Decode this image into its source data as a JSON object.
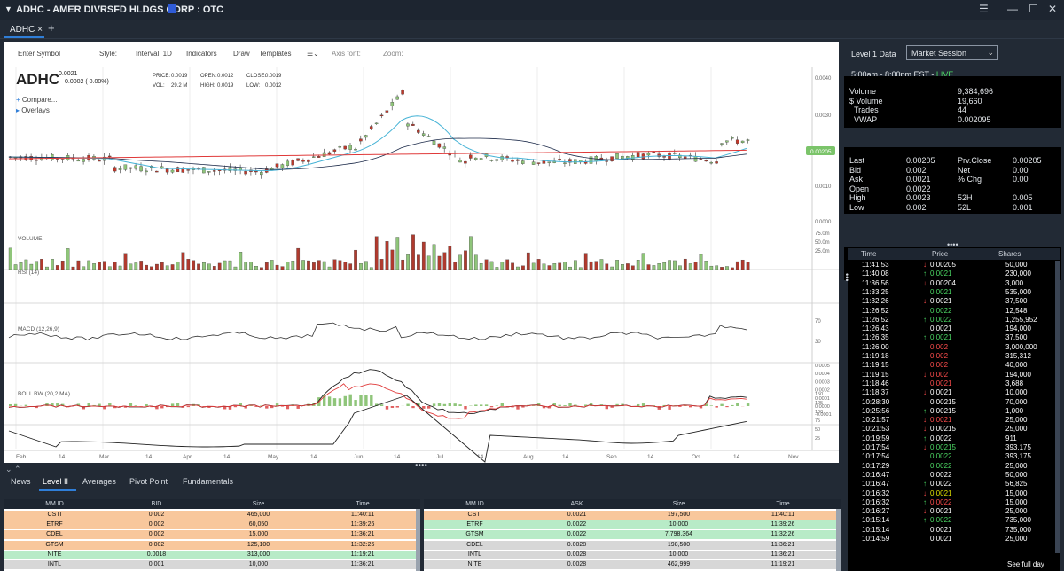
{
  "window": {
    "title": "ADHC - AMER DIVRSFD HLDGS CORP : OTC"
  },
  "tabs": [
    {
      "label": "ADHC ×"
    }
  ],
  "toolbar": {
    "symbol_placeholder": "Enter Symbol",
    "style": "Style:",
    "interval": "Interval: 1D",
    "indicators": "Indicators",
    "draw": "Draw",
    "templates": "Templates",
    "axis_font": "Axis font:",
    "zoom": "Zoom:"
  },
  "quote": {
    "symbol": "ADHC",
    "last": "0.0021",
    "change": "0.0002 ( 0.00%)",
    "price_label": "PRICE:",
    "price": "0.0019",
    "vol_label": "VOL:",
    "vol": "29.2 M",
    "open_label": "OPEN:",
    "open": "0.0012",
    "high_label": "HIGH:",
    "high": "0.0019",
    "close_label": "CLOSE:",
    "close": "0.0019",
    "low_label": "LOW:",
    "low": "0.0012",
    "compare": "Compare...",
    "overlays": "Overlays"
  },
  "panels": {
    "volume": "VOLUME",
    "rsi": "RSI (14)",
    "macd": "MACD (12,26,9)",
    "bollbw": "BOLL BW (20,2,MA)"
  },
  "axes": {
    "price": [
      "0.0040",
      "0.0030",
      "0.0020",
      "0.0010",
      "0.0000"
    ],
    "current_price": "0.00205",
    "volume": [
      "75.0m",
      "50.0m",
      "25.0m"
    ],
    "rsi": [
      "70",
      "30"
    ],
    "macd": [
      "0.0005",
      "0.0004",
      "0.0003",
      "0.0002",
      "0.0001",
      "0.0000",
      "-0.0001"
    ],
    "bollbw": [
      "150",
      "125",
      "100",
      "75",
      "50",
      "25"
    ],
    "dates": [
      "Feb",
      "14",
      "Mar",
      "14",
      "Apr",
      "14",
      "May",
      "14",
      "Jun",
      "14",
      "Jul",
      "14",
      "Aug",
      "14",
      "Sep",
      "14",
      "Oct",
      "14",
      "Nov"
    ]
  },
  "bottom_tabs": [
    "News",
    "Level II",
    "Averages",
    "Pivot Point",
    "Fundamentals"
  ],
  "bid_table": {
    "headers": [
      "MM ID",
      "BID",
      "Size",
      "Time"
    ],
    "rows": [
      [
        "CSTI",
        "0.002",
        "465,000",
        "11:40:11"
      ],
      [
        "ETRF",
        "0.002",
        "60,050",
        "11:39:26"
      ],
      [
        "CDEL",
        "0.002",
        "15,000",
        "11:36:21"
      ],
      [
        "GTSM",
        "0.002",
        "125,100",
        "11:32:26"
      ],
      [
        "NITE",
        "0.0018",
        "313,000",
        "11:19:21"
      ],
      [
        "INTL",
        "0.001",
        "10,000",
        "11:36:21"
      ]
    ],
    "colors": [
      "#f8c79c",
      "#f8c79c",
      "#f8c79c",
      "#f8c79c",
      "#b8ebc7",
      "#d7d7d7"
    ]
  },
  "ask_table": {
    "headers": [
      "MM ID",
      "ASK",
      "Size",
      "Time"
    ],
    "rows": [
      [
        "CSTI",
        "0.0021",
        "197,500",
        "11:40:11"
      ],
      [
        "ETRF",
        "0.0022",
        "10,000",
        "11:39:26"
      ],
      [
        "GTSM",
        "0.0022",
        "7,798,364",
        "11:32:26"
      ],
      [
        "CDEL",
        "0.0028",
        "198,500",
        "11:36:21"
      ],
      [
        "INTL",
        "0.0028",
        "10,000",
        "11:36:21"
      ],
      [
        "NITE",
        "0.0028",
        "462,999",
        "11:19:21"
      ]
    ],
    "colors": [
      "#f8c79c",
      "#b8ebc7",
      "#b8ebc7",
      "#d7d7d7",
      "#d7d7d7",
      "#d7d7d7"
    ]
  },
  "level1": {
    "title": "Level 1 Data",
    "session": "Market Session",
    "hours": "5:00am - 8:00pm EST - ",
    "live": "LIVE",
    "stats": [
      [
        "Volume",
        "9,384,696"
      ],
      [
        "$ Volume",
        "19,660"
      ],
      [
        "Trades",
        "44"
      ],
      [
        "VWAP",
        "0.002095"
      ]
    ],
    "quote_left": [
      [
        "Last",
        "0.00205"
      ],
      [
        "Bid",
        "0.002"
      ],
      [
        "Ask",
        "0.0021"
      ],
      [
        "Open",
        "0.0022"
      ],
      [
        "High",
        "0.0023"
      ],
      [
        "Low",
        "0.002"
      ]
    ],
    "quote_right": [
      [
        "Prv.Close",
        "0.00205"
      ],
      [
        "Net",
        "0.00"
      ],
      [
        "% Chg",
        "0.00"
      ],
      [
        "",
        ""
      ],
      [
        "52H",
        "0.005"
      ],
      [
        "52L",
        "0.001"
      ]
    ]
  },
  "time_sales": {
    "headers": [
      "Time",
      "Price",
      "Shares"
    ],
    "footer": "See full day",
    "rows": [
      [
        "11:41:53",
        "down",
        "0.00205",
        "50,000"
      ],
      [
        "11:40:08",
        "up",
        "0.0021",
        "230,000"
      ],
      [
        "11:36:56",
        "down",
        "0.00204",
        "3,000"
      ],
      [
        "11:33:25",
        "",
        "0.0021",
        "535,000"
      ],
      [
        "11:32:26",
        "down",
        "0.0021",
        "37,500"
      ],
      [
        "11:26:52",
        "",
        "0.0022",
        "12,548"
      ],
      [
        "11:26:52",
        "up",
        "0.0022",
        "1,255,952"
      ],
      [
        "11:26:43",
        "",
        "0.0021",
        "194,000"
      ],
      [
        "11:26:35",
        "up",
        "0.0021",
        "37,500"
      ],
      [
        "11:26:00",
        "",
        "0.002",
        "3,000,000"
      ],
      [
        "11:19:18",
        "",
        "0.002",
        "315,312"
      ],
      [
        "11:19:15",
        "",
        "0.002",
        "40,000"
      ],
      [
        "11:19:15",
        "down",
        "0.002",
        "194,000"
      ],
      [
        "11:18:46",
        "",
        "0.0021",
        "3,688"
      ],
      [
        "11:18:37",
        "down",
        "0.0021",
        "10,000"
      ],
      [
        "10:28:30",
        "",
        "0.00215",
        "70,000"
      ],
      [
        "10:25:56",
        "up",
        "0.00215",
        "1,000"
      ],
      [
        "10:21:57",
        "down",
        "0.0021",
        "25,000"
      ],
      [
        "10:21:53",
        "down",
        "0.00215",
        "25,000"
      ],
      [
        "10:19:59",
        "up",
        "0.0022",
        "911"
      ],
      [
        "10:17:54",
        "down",
        "0.00215",
        "393,175"
      ],
      [
        "10:17:54",
        "",
        "0.0022",
        "393,175"
      ],
      [
        "10:17:29",
        "",
        "0.0022",
        "25,000"
      ],
      [
        "10:16:47",
        "",
        "0.0022",
        "50,000"
      ],
      [
        "10:16:47",
        "up",
        "0.0022",
        "56,825"
      ],
      [
        "10:16:32",
        "down",
        "0.0021",
        "15,000"
      ],
      [
        "10:16:32",
        "up",
        "0.0022",
        "15,000"
      ],
      [
        "10:16:27",
        "down",
        "0.0021",
        "25,000"
      ],
      [
        "10:15:14",
        "up",
        "0.0022",
        "735,000"
      ],
      [
        "10:15:14",
        "",
        "0.0021",
        "735,000"
      ],
      [
        "10:14:59",
        "",
        "0.0021",
        "25,000"
      ]
    ],
    "pricecolors": [
      "#fff",
      "#4cd964",
      "#fff",
      "#4cd964",
      "#fff",
      "#4cd964",
      "#4cd964",
      "#fff",
      "#4cd964",
      "#ff4d4d",
      "#ff4d4d",
      "#ff4d4d",
      "#ff4d4d",
      "#ff4d4d",
      "#fff",
      "#fff",
      "#fff",
      "#ff4d4d",
      "#fff",
      "#fff",
      "#4cd964",
      "#4cd964",
      "#4cd964",
      "#fff",
      "#fff",
      "#e0e000",
      "#ff4d4d",
      "#fff",
      "#4cd964",
      "#fff",
      "#fff"
    ]
  }
}
